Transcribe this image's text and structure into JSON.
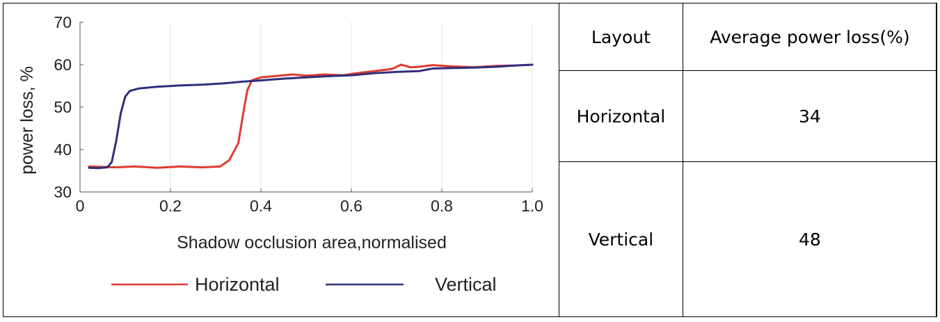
{
  "chart_data": {
    "type": "line",
    "xlabel": "Shadow occlusion area,normalised",
    "ylabel": "power loss, %",
    "xlim": [
      0,
      1.0
    ],
    "ylim": [
      30,
      70
    ],
    "xticks": [
      "0",
      "0.2",
      "0.4",
      "0.6",
      "0.8",
      "1.0"
    ],
    "xtick_values": [
      0,
      0.2,
      0.4,
      0.6,
      0.8,
      1.0
    ],
    "yticks": [
      "30",
      "40",
      "50",
      "60",
      "70"
    ],
    "ytick_values": [
      30,
      40,
      50,
      60,
      70
    ],
    "grid": "vertical",
    "legend_position": "bottom",
    "series": [
      {
        "name": "Horizontal",
        "color": "#e03a32",
        "x": [
          0.02,
          0.05,
          0.08,
          0.12,
          0.17,
          0.22,
          0.27,
          0.31,
          0.33,
          0.35,
          0.36,
          0.37,
          0.38,
          0.4,
          0.44,
          0.47,
          0.5,
          0.54,
          0.58,
          0.62,
          0.66,
          0.69,
          0.71,
          0.73,
          0.75,
          0.78,
          0.82,
          0.87,
          0.92,
          0.96,
          1.0
        ],
        "y": [
          36.0,
          35.9,
          35.8,
          36.0,
          35.7,
          36.0,
          35.8,
          36.0,
          37.5,
          41.5,
          48.0,
          54.0,
          56.3,
          57.0,
          57.4,
          57.7,
          57.4,
          57.7,
          57.5,
          58.1,
          58.6,
          59.0,
          60.0,
          59.4,
          59.5,
          59.9,
          59.6,
          59.4,
          59.7,
          59.8,
          60.0
        ]
      },
      {
        "name": "Vertical",
        "color": "#2e2f7e",
        "x": [
          0.02,
          0.04,
          0.06,
          0.07,
          0.08,
          0.09,
          0.1,
          0.11,
          0.13,
          0.17,
          0.22,
          0.27,
          0.32,
          0.36,
          0.4,
          0.45,
          0.5,
          0.55,
          0.6,
          0.65,
          0.7,
          0.75,
          0.78,
          0.82,
          0.87,
          0.92,
          0.96,
          1.0
        ],
        "y": [
          35.7,
          35.6,
          35.8,
          37.0,
          42.0,
          48.5,
          52.5,
          53.8,
          54.4,
          54.8,
          55.1,
          55.3,
          55.6,
          56.0,
          56.3,
          56.7,
          57.0,
          57.3,
          57.5,
          58.0,
          58.3,
          58.5,
          59.1,
          59.2,
          59.3,
          59.5,
          59.8,
          60.0
        ]
      }
    ]
  },
  "table": {
    "headers": [
      "Layout",
      "Average power loss(%)"
    ],
    "rows": [
      {
        "layout": "Horizontal",
        "value": "34"
      },
      {
        "layout": "Vertical",
        "value": "48"
      }
    ]
  }
}
